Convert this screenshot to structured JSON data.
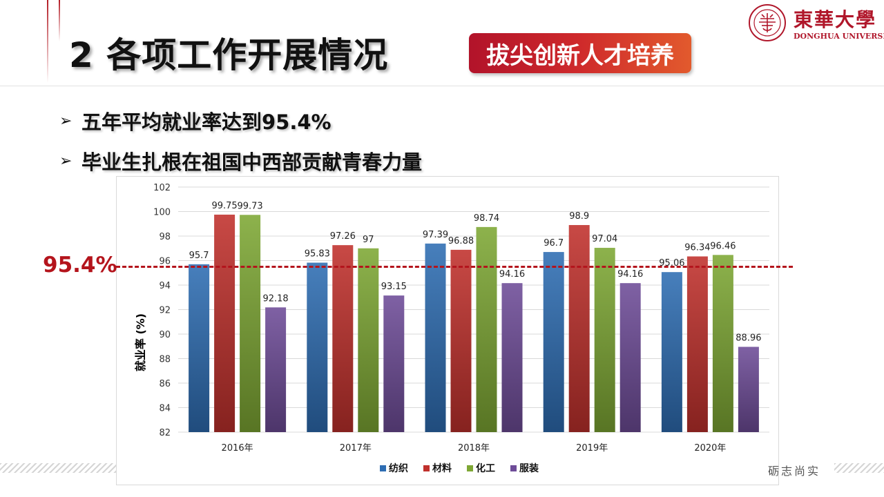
{
  "slide": {
    "title": "2 各项工作开展情况",
    "badge": "拔尖创新人才培养",
    "logo": {
      "cn": "東華大學",
      "en": "DONGHUA UNIVERSITY"
    },
    "bullets": [
      {
        "icon": "➢",
        "text": "五年平均就业率达到95.4%"
      },
      {
        "icon": "➢",
        "text": "毕业生扎根在祖国中西部贡献青春力量"
      }
    ],
    "reference": {
      "label": "95.4%",
      "value": 95.4
    },
    "footer": "砺志尚实"
  },
  "chart_data": {
    "type": "bar",
    "categories": [
      "2016年",
      "2017年",
      "2018年",
      "2019年",
      "2020年"
    ],
    "series": [
      {
        "name": "纺织",
        "color": "#2e6db3",
        "values": [
          95.7,
          95.83,
          97.39,
          96.7,
          95.06
        ]
      },
      {
        "name": "材料",
        "color": "#c0302c",
        "values": [
          99.75,
          97.26,
          96.88,
          98.9,
          96.34
        ]
      },
      {
        "name": "化工",
        "color": "#7ea734",
        "values": [
          99.73,
          97,
          98.74,
          97.04,
          96.46
        ]
      },
      {
        "name": "服装",
        "color": "#6e4c98",
        "values": [
          92.18,
          93.15,
          94.16,
          94.16,
          88.96
        ]
      }
    ],
    "ylabel": "就业率 (%)",
    "xlabel": "",
    "ylim": [
      82,
      102
    ],
    "yticks": [
      82,
      84,
      86,
      88,
      90,
      92,
      94,
      96,
      98,
      100,
      102
    ],
    "grid": true,
    "legend": "bottom",
    "data_labels": true
  }
}
